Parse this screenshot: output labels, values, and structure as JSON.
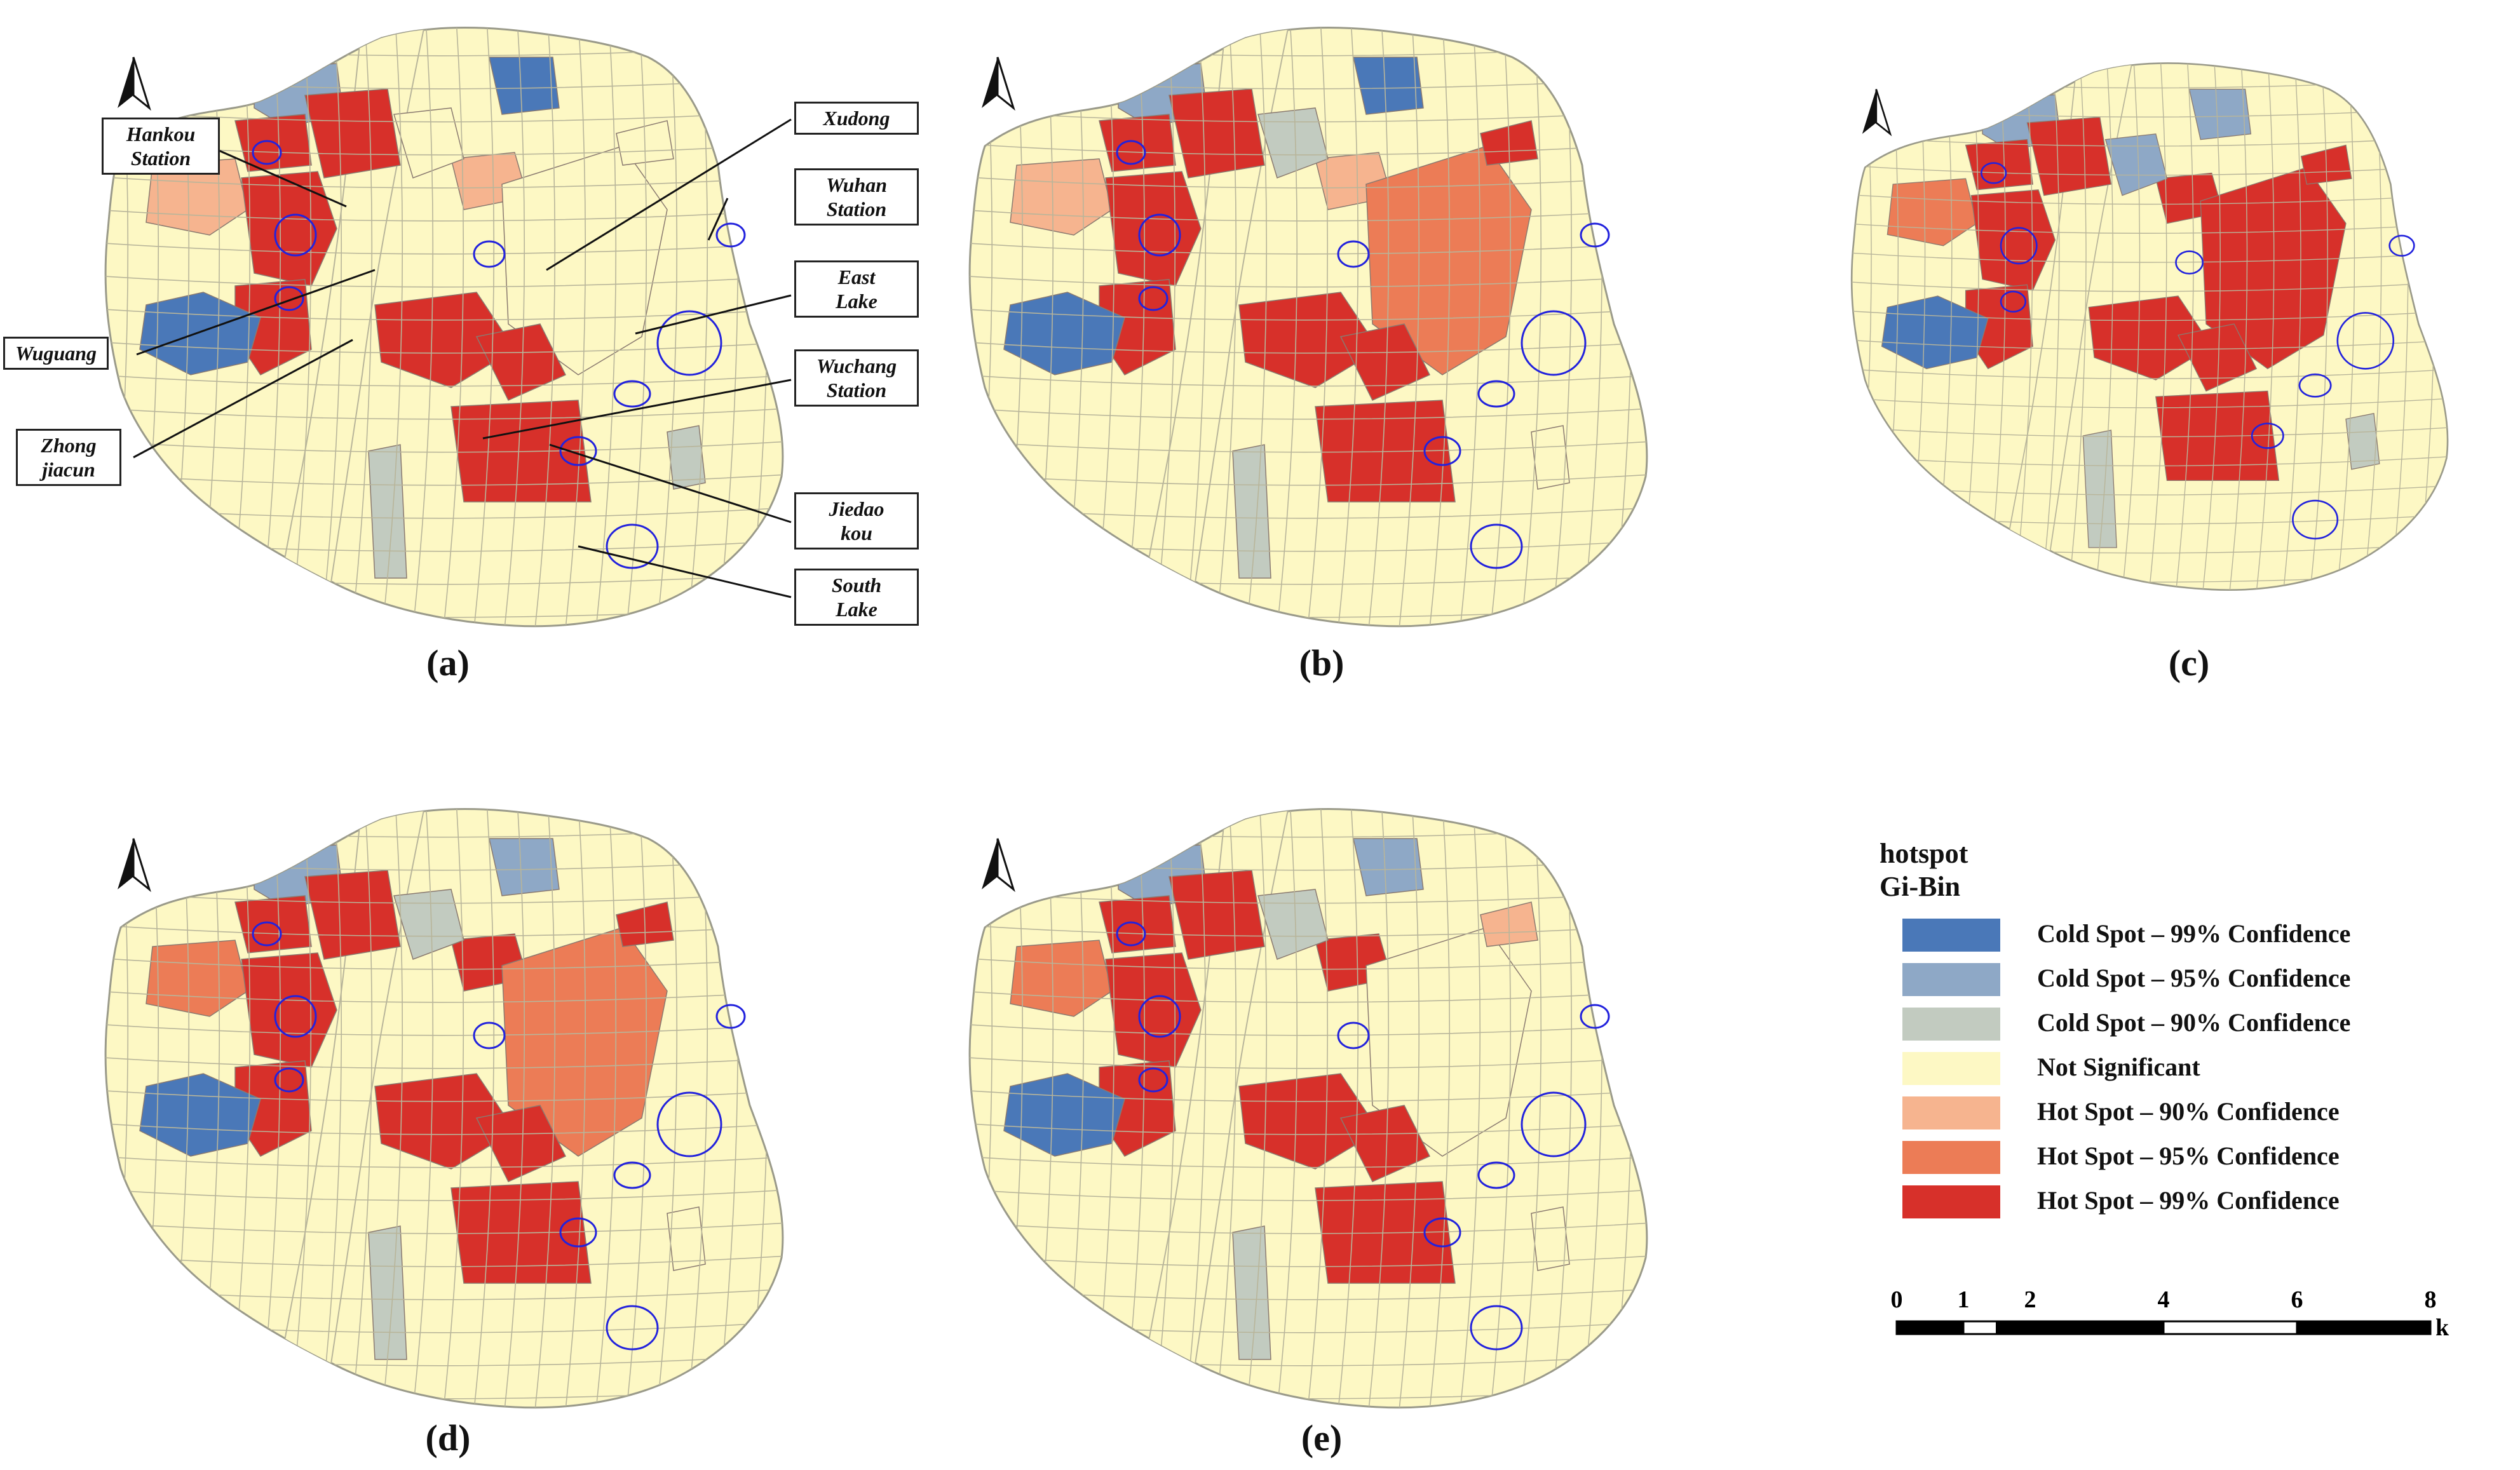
{
  "panels": [
    {
      "label": "(a)"
    },
    {
      "label": "(b)"
    },
    {
      "label": "(c)"
    },
    {
      "label": "(d)"
    },
    {
      "label": "(e)"
    }
  ],
  "callouts": {
    "hankou_station": "Hankou\nStation",
    "wuguang": "Wuguang",
    "zhong_jiacun": "Zhong\njiacun",
    "xudong": "Xudong",
    "wuhan_station": "Wuhan\nStation",
    "east_lake": "East\nLake",
    "wuchang_station": "Wuchang\nStation",
    "jiedao_kou": "Jiedao\nkou",
    "south_lake": "South\nLake"
  },
  "legend": {
    "title_line1": "hotspot",
    "title_line2": "Gi-Bin",
    "items": [
      {
        "label": "Cold Spot – 99% Confidence",
        "color": "#4a78b8"
      },
      {
        "label": "Cold Spot – 95% Confidence",
        "color": "#8ea8c6"
      },
      {
        "label": "Cold Spot – 90% Confidence",
        "color": "#c2cbc0"
      },
      {
        "label": "Not Significant",
        "color": "#fdf8c4"
      },
      {
        "label": "Hot Spot – 90% Confidence",
        "color": "#f6b48f"
      },
      {
        "label": "Hot Spot – 95% Confidence",
        "color": "#ec7c56"
      },
      {
        "label": "Hot Spot – 99% Confidence",
        "color": "#d7302a"
      }
    ]
  },
  "scale": {
    "ticks": [
      "0",
      "1",
      "2",
      "4",
      "6",
      "8"
    ],
    "unit": "km"
  },
  "colors": {
    "highlight_circle": "#2222dd",
    "boundary": "#9a9a8a",
    "roads": "#b8b59a"
  },
  "icons": {
    "north_arrow": "north-arrow-icon"
  }
}
